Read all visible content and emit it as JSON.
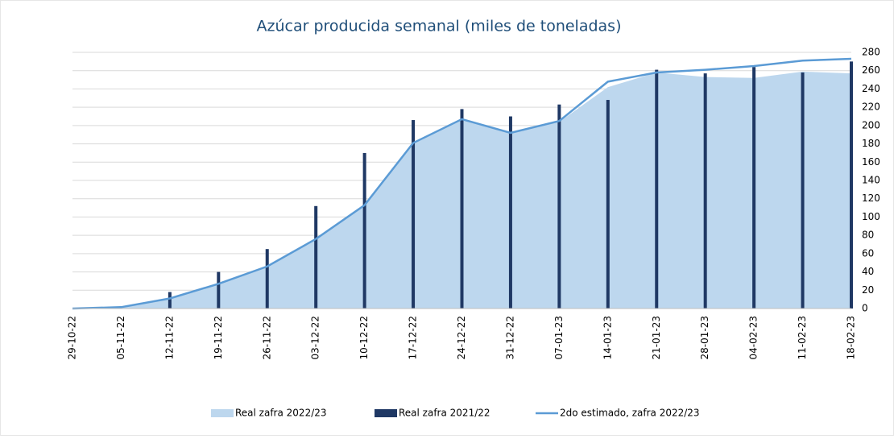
{
  "chart_data": {
    "type": "combo",
    "title": "Azúcar producida semanal (miles de toneladas)",
    "categories": [
      "29-10-22",
      "05-11-22",
      "12-11-22",
      "19-11-22",
      "26-11-22",
      "03-12-22",
      "10-12-22",
      "17-12-22",
      "24-12-22",
      "31-12-22",
      "07-01-23",
      "14-01-23",
      "21-01-23",
      "28-01-23",
      "04-02-23",
      "11-02-23",
      "18-02-23"
    ],
    "series": [
      {
        "name": "Real zafra 2022/23",
        "type": "area",
        "color": "#bdd7ee",
        "values": [
          0,
          1,
          10,
          27,
          46,
          76,
          113,
          180,
          207,
          192,
          204,
          242,
          258,
          253,
          252,
          259,
          257
        ]
      },
      {
        "name": "Real zafra 2021/22",
        "type": "bar",
        "color": "#1f3864",
        "values": [
          0,
          0,
          18,
          40,
          65,
          112,
          170,
          206,
          218,
          210,
          223,
          228,
          261,
          257,
          264,
          258,
          270
        ]
      },
      {
        "name": "2do estimado, zafra 2022/23",
        "type": "line",
        "color": "#5b9bd5",
        "values": [
          0,
          1.5,
          11,
          27,
          46,
          76,
          113,
          181,
          207,
          192,
          205,
          248,
          258,
          261,
          265,
          271,
          273
        ]
      }
    ],
    "ylim": [
      0,
      280
    ],
    "yticks": [
      0,
      20,
      40,
      60,
      80,
      100,
      120,
      140,
      160,
      180,
      200,
      220,
      240,
      260,
      280
    ],
    "grid": true,
    "legend": "bottom"
  }
}
